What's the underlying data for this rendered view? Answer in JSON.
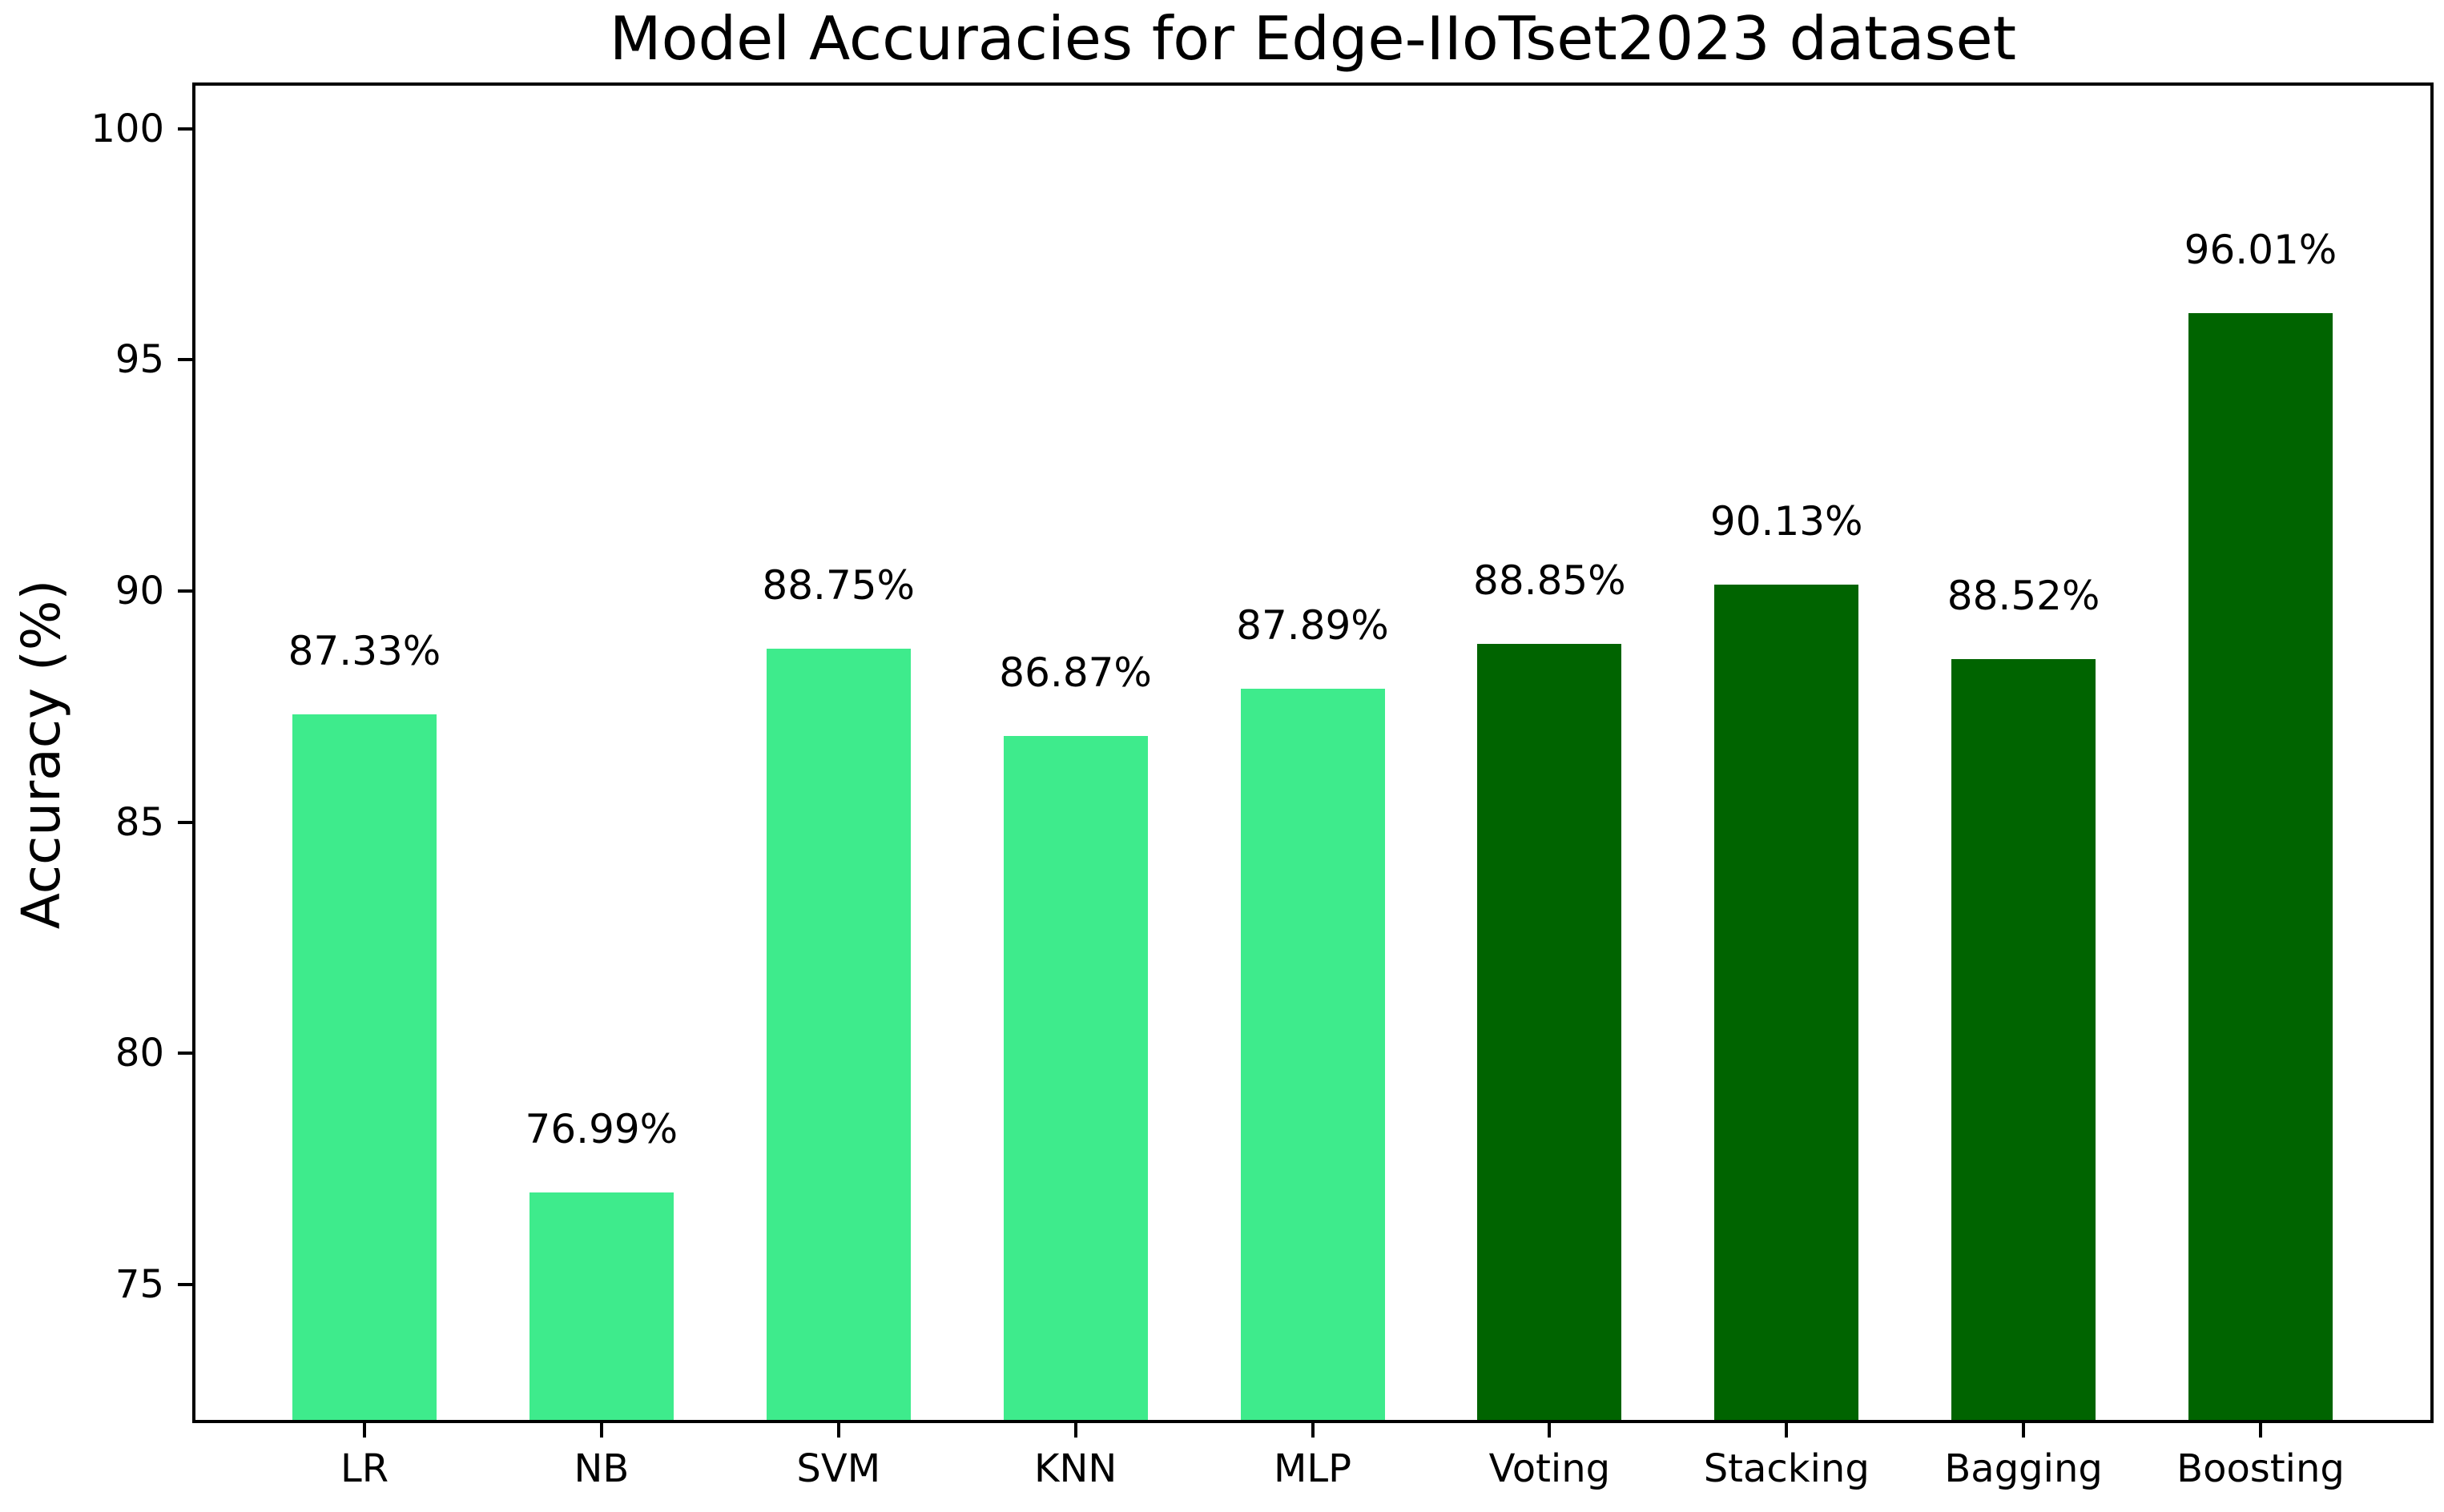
{
  "chart_data": {
    "type": "bar",
    "title": "Model Accuracies for Edge-IIoTset2023 dataset",
    "xlabel": "",
    "ylabel": "Accuracy (%)",
    "categories": [
      "LR",
      "NB",
      "SVM",
      "KNN",
      "MLP",
      "Voting",
      "Stacking",
      "Bagging",
      "Boosting"
    ],
    "values": [
      87.33,
      76.99,
      88.75,
      86.87,
      87.89,
      88.85,
      90.13,
      88.52,
      96.01
    ],
    "value_labels": [
      "87.33%",
      "76.99%",
      "88.75%",
      "86.87%",
      "87.89%",
      "88.85%",
      "90.13%",
      "88.52%",
      "96.01%"
    ],
    "bar_colors": [
      "#3EEB8C",
      "#3EEB8C",
      "#3EEB8C",
      "#3EEB8C",
      "#3EEB8C",
      "#006400",
      "#006400",
      "#006400",
      "#006400"
    ],
    "group_colors": {
      "single_models": "#3EEB8C",
      "ensemble_models": "#006400"
    },
    "yticks": [
      75,
      80,
      85,
      90,
      95,
      100
    ],
    "ylim": [
      72,
      101
    ],
    "grid": false,
    "legend": "none",
    "axis_color": "#000000",
    "background_color": "#ffffff"
  }
}
